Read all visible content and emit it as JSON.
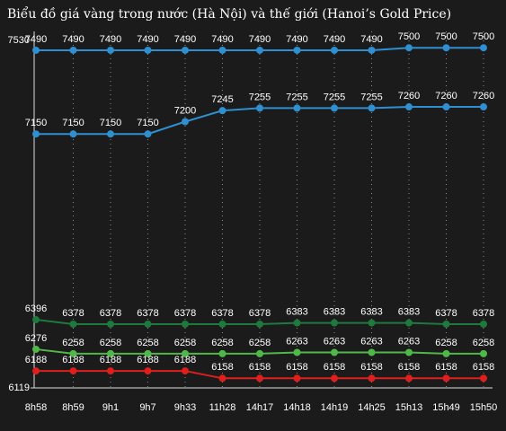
{
  "chart_data": {
    "type": "line",
    "title": "Biểu đồ giá vàng trong nước (Hà Nội) và thế giới (Hanoi’s Gold Price)",
    "categories": [
      "8h58",
      "8h59",
      "9h1",
      "9h7",
      "9h33",
      "11h28",
      "14h17",
      "14h18",
      "14h19",
      "14h25",
      "15h13",
      "15h49",
      "15h50"
    ],
    "series": [
      {
        "color": "#2f8fd0",
        "values": [
          7490,
          7490,
          7490,
          7490,
          7490,
          7490,
          7490,
          7490,
          7490,
          7490,
          7500,
          7500,
          7500
        ]
      },
      {
        "color": "#2f8fd0",
        "values": [
          7150,
          7150,
          7150,
          7150,
          7200,
          7245,
          7255,
          7255,
          7255,
          7255,
          7260,
          7260,
          7260
        ]
      },
      {
        "color": "#1e7a3c",
        "values": [
          6396,
          6378,
          6378,
          6378,
          6378,
          6378,
          6378,
          6383,
          6383,
          6383,
          6383,
          6378,
          6378
        ]
      },
      {
        "color": "#4fb848",
        "values": [
          6276,
          6258,
          6258,
          6258,
          6258,
          6258,
          6258,
          6263,
          6263,
          6263,
          6263,
          6258,
          6258
        ]
      },
      {
        "color": "#e01e1e",
        "values": [
          6188,
          6188,
          6188,
          6188,
          6188,
          6158,
          6158,
          6158,
          6158,
          6158,
          6158,
          6158,
          6158
        ]
      }
    ],
    "ylim": [
      6119,
      7530
    ],
    "yticks": [
      6119,
      7530
    ],
    "grid": true
  }
}
